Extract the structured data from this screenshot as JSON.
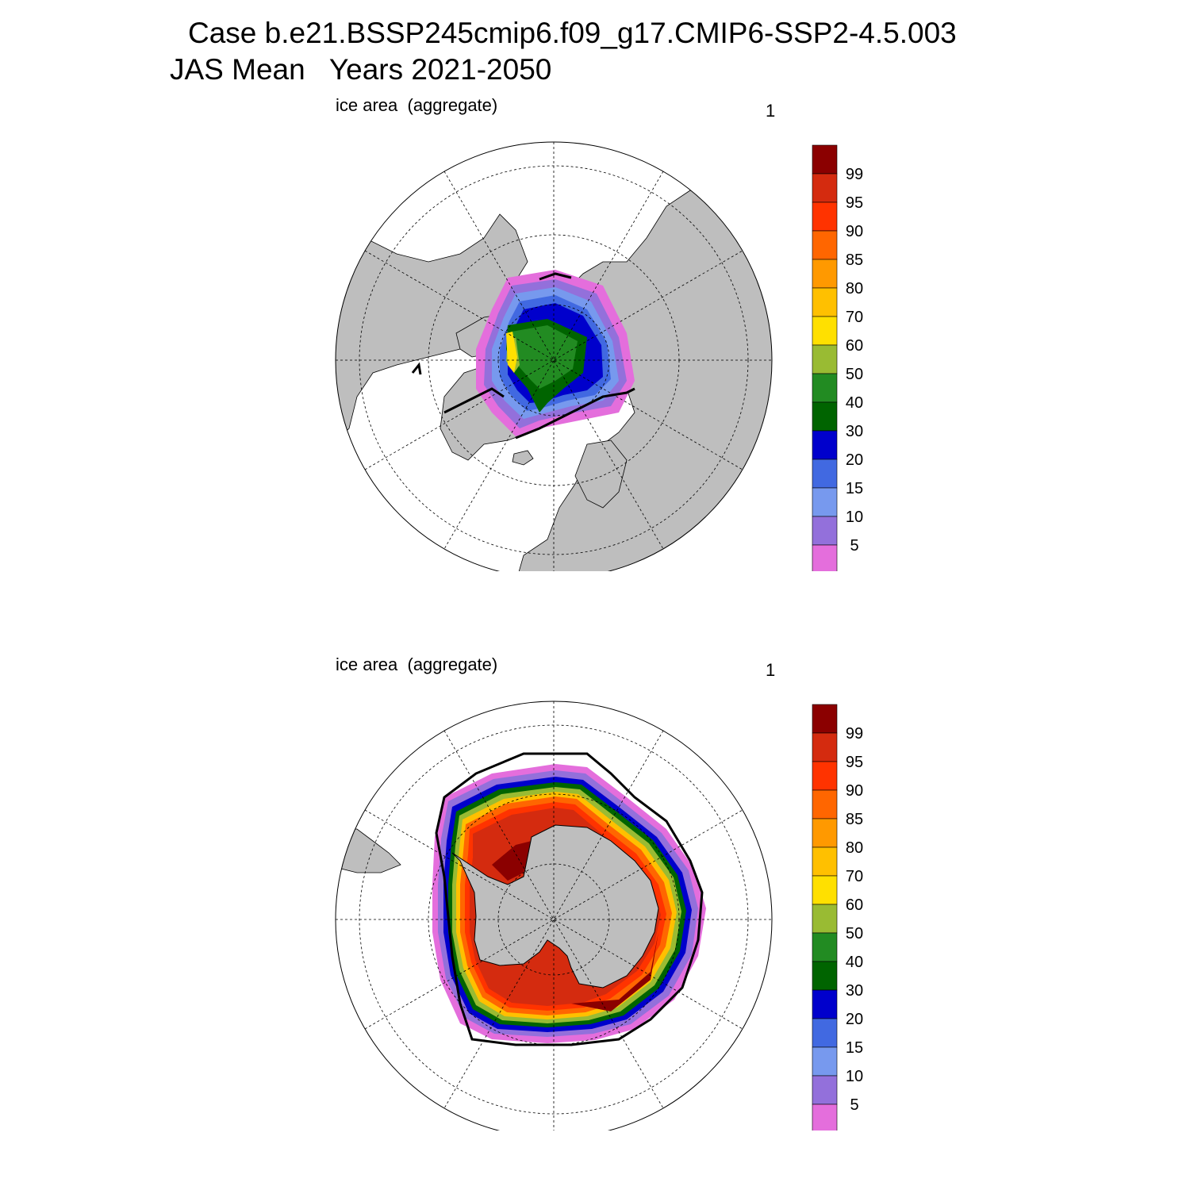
{
  "header": {
    "line1": "Case b.e21.BSSP245cmip6.f09_g17.CMIP6-SSP2-4.5.003",
    "line2": "JAS Mean   Years 2021-2050"
  },
  "panels": [
    {
      "id": "north",
      "hemisphere": "arctic",
      "subtitle": "ice area  (aggregate)",
      "index": "1"
    },
    {
      "id": "south",
      "hemisphere": "antarctic",
      "subtitle": "ice area  (aggregate)",
      "index": "1"
    }
  ],
  "colorbar": {
    "labels": [
      "99",
      "95",
      "90",
      "85",
      "80",
      "70",
      "60",
      "50",
      "40",
      "30",
      "20",
      "15",
      "10",
      "5"
    ],
    "colors": [
      "#8B0000",
      "#D42B0F",
      "#FF3300",
      "#FF6600",
      "#FF9900",
      "#FFC000",
      "#FFE000",
      "#99BB33",
      "#228B22",
      "#006400",
      "#0000CC",
      "#4169E1",
      "#7799EE",
      "#9370DB",
      "#E46EDC"
    ]
  },
  "map_colors": {
    "land": "#BEBEBE",
    "ocean": "#FFFFFF",
    "ice_edge": "#000000"
  }
}
